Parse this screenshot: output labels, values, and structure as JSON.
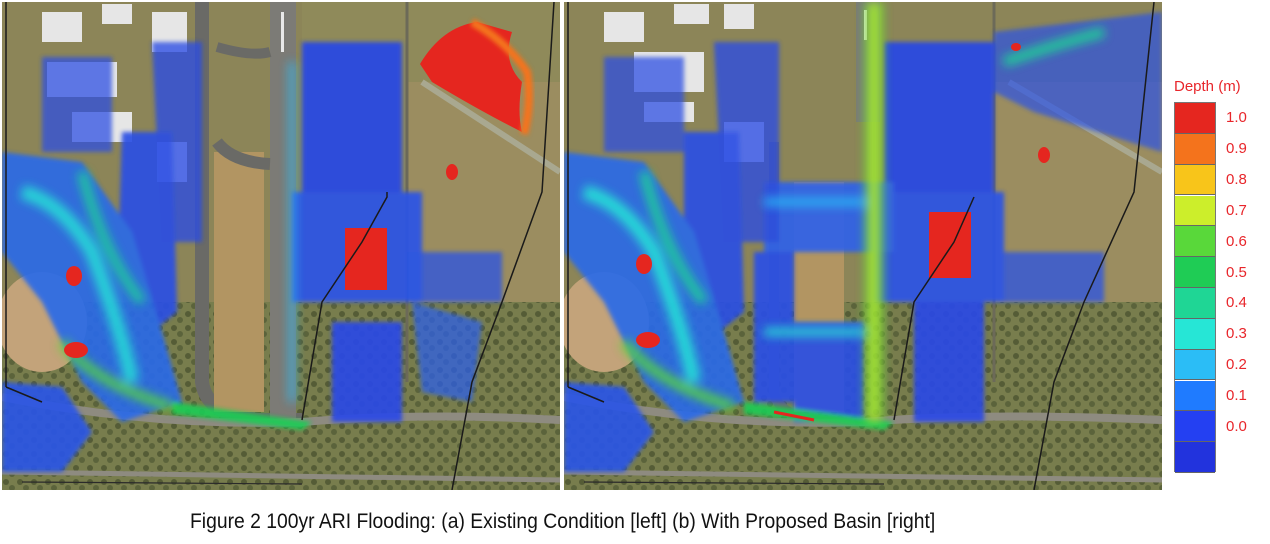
{
  "legend": {
    "title": "Depth (m)",
    "ticks": [
      "1.0",
      "0.9",
      "0.8",
      "0.7",
      "0.6",
      "0.5",
      "0.4",
      "0.3",
      "0.2",
      "0.1",
      "0.0"
    ],
    "colors": [
      "#e5261f",
      "#f4731c",
      "#f8c51a",
      "#ccee2b",
      "#59d83a",
      "#1fcc55",
      "#1fd695",
      "#26e6d6",
      "#2bbdf6",
      "#1f7bff",
      "#2440f2",
      "#2233dd"
    ]
  },
  "caption": "Figure 2 100yr ARI Flooding: (a) Existing Condition [left] (b) With Proposed Basin [right]",
  "maps": [
    {
      "label": "Existing Condition"
    },
    {
      "label": "With Proposed Basin"
    }
  ]
}
